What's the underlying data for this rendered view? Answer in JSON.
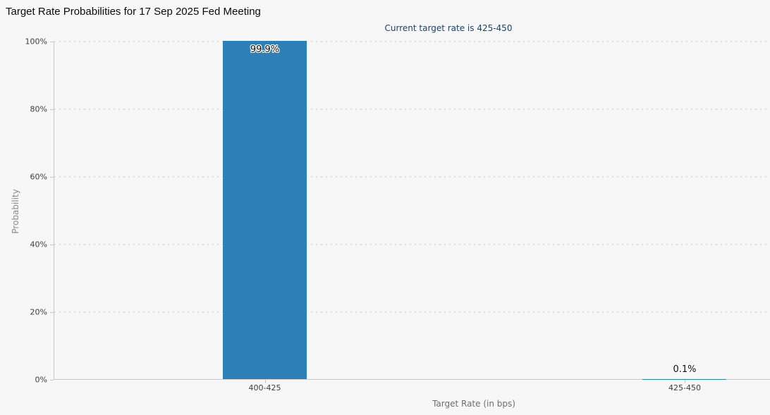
{
  "chart": {
    "title": "Target Rate Probabilities for 17 Sep 2025 Fed Meeting",
    "subtitle": "Current target rate is 425-450"
  },
  "chart_data": {
    "type": "bar",
    "title": "Target Rate Probabilities for 17 Sep 2025 Fed Meeting",
    "subtitle": "Current target rate is 425-450",
    "categories": [
      "400-425",
      "425-450"
    ],
    "values": [
      99.9,
      0.1
    ],
    "value_labels": [
      "99.9%",
      "0.1%"
    ],
    "xlabel": "Target Rate (in bps)",
    "ylabel": "Probability",
    "ylim": [
      0,
      100
    ],
    "yticks": [
      0,
      20,
      40,
      60,
      80,
      100
    ],
    "ytick_labels": [
      "0%",
      "20%",
      "40%",
      "60%",
      "80%",
      "100%"
    ],
    "legend": "none",
    "grid": "horizontal-dotted",
    "colors": {
      "bar": "#2d7fb8",
      "background": "#f7f7f7",
      "subtitle_text": "#1d4167",
      "grid": "#dddddd",
      "axis": "#c9c9c9"
    }
  }
}
